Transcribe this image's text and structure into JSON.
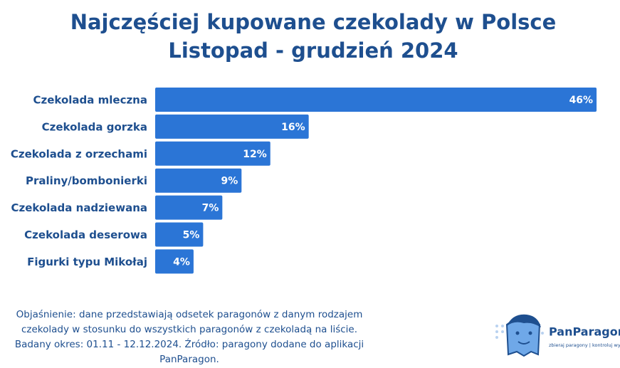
{
  "chart_data": {
    "type": "bar",
    "orientation": "horizontal",
    "title": [
      "Najczęściej kupowane czekolady w Polsce",
      "Listopad - grudzień 2024"
    ],
    "categories": [
      "Czekolada mleczna",
      "Czekolada gorzka",
      "Czekolada z orzechami",
      "Praliny/bombonierki",
      "Czekolada nadziewana",
      "Czekolada deserowa",
      "Figurki typu Mikołaj"
    ],
    "values": [
      46,
      16,
      12,
      9,
      7,
      5,
      4
    ],
    "value_labels": [
      "46%",
      "16%",
      "12%",
      "9%",
      "7%",
      "5%",
      "4%"
    ],
    "color": "#2b75d6"
  },
  "footnote": [
    "Objaśnienie: dane przedstawiają odsetek paragonów z danym rodzajem",
    "czekolady w stosunku do wszystkich paragonów z czekoladą na liście.",
    "Badany okres: 01.11 - 12.12.2024. Źródło: paragony dodane do aplikacji",
    "PanParagon."
  ],
  "logo": {
    "name": "PanParagon",
    "tagline": "zbieraj paragony | kontroluj wydatki"
  }
}
